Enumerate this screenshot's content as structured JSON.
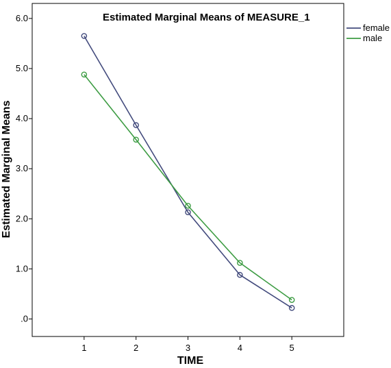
{
  "chart_data": {
    "type": "line",
    "title": "Estimated Marginal Means of MEASURE_1",
    "xlabel": "TIME",
    "ylabel": "Estimated Marginal Means",
    "categories": [
      "1",
      "2",
      "3",
      "4",
      "5"
    ],
    "y_tick_labels": [
      ".0",
      "1.0",
      "2.0",
      "3.0",
      "4.0",
      "5.0",
      "6.0"
    ],
    "y_ticks": [
      0,
      1,
      2,
      3,
      4,
      5,
      6
    ],
    "ylim": [
      -0.35,
      6.3
    ],
    "xlim": [
      0,
      6
    ],
    "grid": false,
    "legend_position": "top-right, outside plot",
    "series": [
      {
        "name": "female",
        "color": "#434b7d",
        "values": [
          5.65,
          3.87,
          2.13,
          0.88,
          0.22
        ]
      },
      {
        "name": "male",
        "color": "#3d9c43",
        "values": [
          4.88,
          3.58,
          2.26,
          1.12,
          0.38
        ]
      }
    ]
  }
}
